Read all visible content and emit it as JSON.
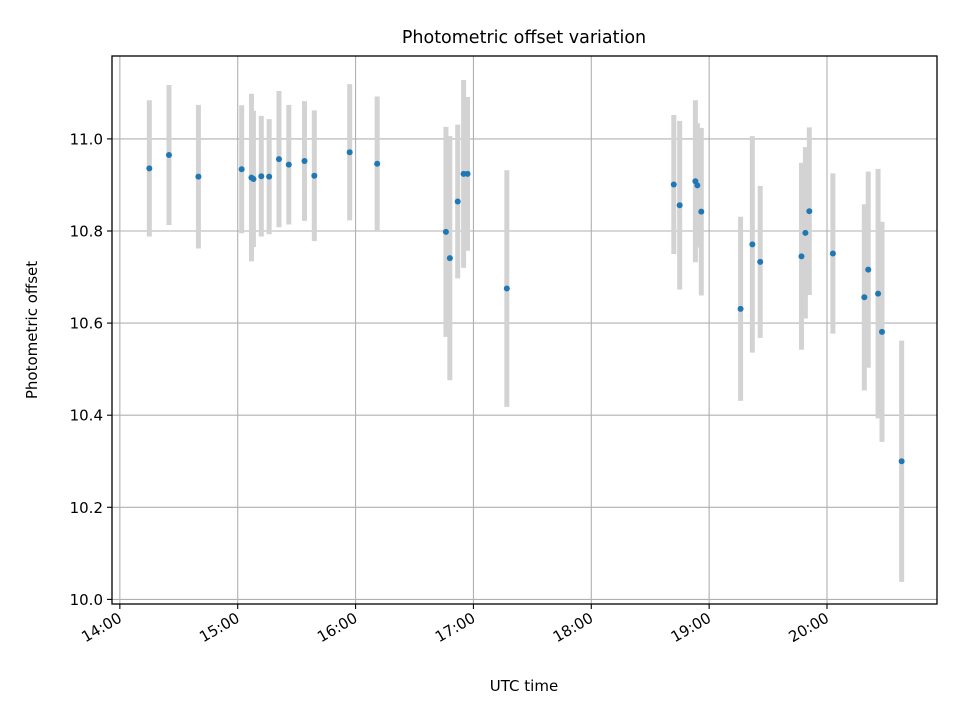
{
  "chart_data": {
    "type": "scatter",
    "title": "Photometric offset variation",
    "xlabel": "UTC time",
    "ylabel": "Photometric offset",
    "x_ticks": [
      "14:00",
      "15:00",
      "16:00",
      "17:00",
      "18:00",
      "19:00",
      "20:00"
    ],
    "y_ticks": [
      "10.0",
      "10.2",
      "10.4",
      "10.6",
      "10.8",
      "11.0"
    ],
    "xlim": [
      "13:56",
      "20:56"
    ],
    "ylim": [
      9.99,
      11.18
    ],
    "grid": true,
    "colors": {
      "point": "#1f77b4",
      "errorbar": "#d3d3d3",
      "grid": "#b0b0b0"
    },
    "points": [
      {
        "t": "14:15",
        "y": 10.936,
        "err": 0.148
      },
      {
        "t": "14:25",
        "y": 10.965,
        "err": 0.152
      },
      {
        "t": "14:40",
        "y": 10.918,
        "err": 0.156
      },
      {
        "t": "15:02",
        "y": 10.934,
        "err": 0.139
      },
      {
        "t": "15:07",
        "y": 10.916,
        "err": 0.182
      },
      {
        "t": "15:08",
        "y": 10.913,
        "err": 0.148
      },
      {
        "t": "15:12",
        "y": 10.919,
        "err": 0.131
      },
      {
        "t": "15:16",
        "y": 10.918,
        "err": 0.125
      },
      {
        "t": "15:21",
        "y": 10.956,
        "err": 0.148
      },
      {
        "t": "15:26",
        "y": 10.944,
        "err": 0.13
      },
      {
        "t": "15:34",
        "y": 10.952,
        "err": 0.13
      },
      {
        "t": "15:39",
        "y": 10.92,
        "err": 0.142
      },
      {
        "t": "15:57",
        "y": 10.971,
        "err": 0.148
      },
      {
        "t": "16:11",
        "y": 10.946,
        "err": 0.146
      },
      {
        "t": "16:46",
        "y": 10.798,
        "err": 0.228
      },
      {
        "t": "16:48",
        "y": 10.741,
        "err": 0.265
      },
      {
        "t": "16:52",
        "y": 10.864,
        "err": 0.167
      },
      {
        "t": "16:55",
        "y": 10.924,
        "err": 0.204
      },
      {
        "t": "16:57",
        "y": 10.924,
        "err": 0.167
      },
      {
        "t": "17:17",
        "y": 10.675,
        "err": 0.257
      },
      {
        "t": "18:42",
        "y": 10.901,
        "err": 0.151
      },
      {
        "t": "18:45",
        "y": 10.856,
        "err": 0.183
      },
      {
        "t": "18:53",
        "y": 10.908,
        "err": 0.176
      },
      {
        "t": "18:54",
        "y": 10.899,
        "err": 0.135
      },
      {
        "t": "18:56",
        "y": 10.842,
        "err": 0.182
      },
      {
        "t": "19:16",
        "y": 10.631,
        "err": 0.2
      },
      {
        "t": "19:22",
        "y": 10.771,
        "err": 0.235
      },
      {
        "t": "19:26",
        "y": 10.733,
        "err": 0.165
      },
      {
        "t": "19:47",
        "y": 10.745,
        "err": 0.203
      },
      {
        "t": "19:49",
        "y": 10.796,
        "err": 0.186
      },
      {
        "t": "19:51",
        "y": 10.843,
        "err": 0.182
      },
      {
        "t": "20:03",
        "y": 10.751,
        "err": 0.174
      },
      {
        "t": "20:19",
        "y": 10.656,
        "err": 0.202
      },
      {
        "t": "20:21",
        "y": 10.716,
        "err": 0.213
      },
      {
        "t": "20:26",
        "y": 10.664,
        "err": 0.271
      },
      {
        "t": "20:28",
        "y": 10.581,
        "err": 0.239
      },
      {
        "t": "20:38",
        "y": 10.3,
        "err": 0.262
      }
    ]
  }
}
